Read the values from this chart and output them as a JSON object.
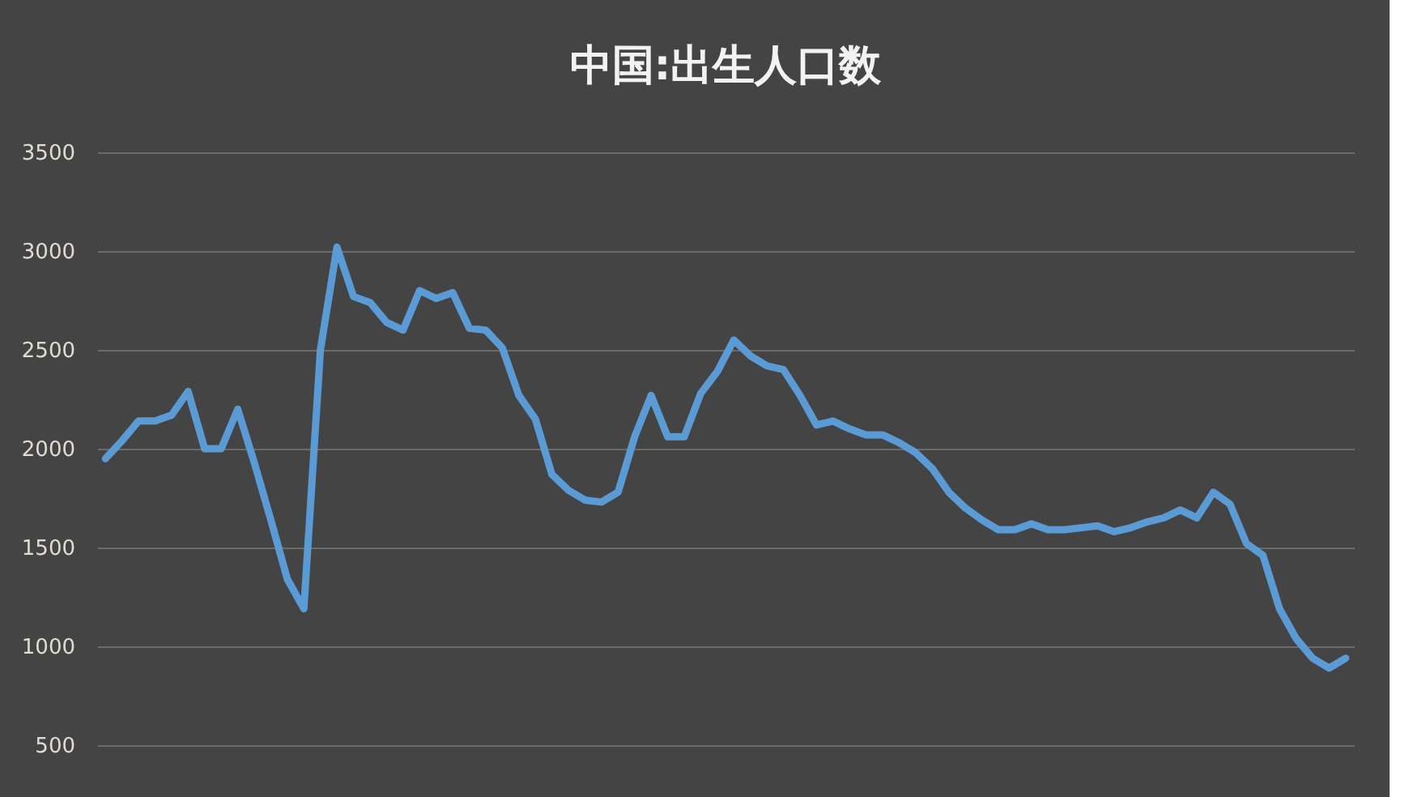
{
  "chart_data": {
    "type": "line",
    "title": "中国:出生人口数",
    "categories": [
      null,
      null,
      null,
      null,
      null,
      null,
      null,
      null,
      null,
      null,
      null,
      null,
      null,
      null,
      null,
      null,
      null,
      null,
      null,
      null,
      null,
      null,
      null,
      null,
      null,
      null,
      null,
      null,
      null,
      null,
      null,
      null,
      null,
      null,
      null,
      null,
      null,
      null,
      null,
      null,
      null,
      null,
      null,
      null,
      null,
      null,
      null,
      null,
      null,
      null,
      null,
      null,
      null,
      null,
      null,
      null,
      null,
      null,
      null,
      null,
      null,
      null,
      null,
      null,
      null,
      null,
      null,
      null,
      null,
      null,
      null,
      null,
      null,
      null,
      null,
      null
    ],
    "series": [
      {
        "color": "#5b9bd5",
        "values": [
          1950,
          2040,
          2140,
          2140,
          2170,
          2290,
          2000,
          2000,
          2200,
          1930,
          1640,
          1340,
          1190,
          2500,
          3020,
          2770,
          2740,
          2640,
          2600,
          2800,
          2760,
          2790,
          2610,
          2600,
          2510,
          2270,
          2150,
          1870,
          1790,
          1740,
          1730,
          1780,
          2060,
          2270,
          2060,
          2060,
          2280,
          2390,
          2550,
          2470,
          2420,
          2400,
          2270,
          2120,
          2140,
          2100,
          2070,
          2070,
          2030,
          1980,
          1900,
          1780,
          1700,
          1640,
          1590,
          1590,
          1620,
          1590,
          1590,
          1600,
          1610,
          1580,
          1600,
          1630,
          1650,
          1690,
          1650,
          1780,
          1720,
          1520,
          1460,
          1190,
          1040,
          940,
          890,
          940
        ]
      }
    ],
    "ylim": [
      500,
      3500
    ],
    "yticks": [
      500,
      1000,
      1500,
      2000,
      2500,
      3000,
      3500
    ],
    "grid": "y",
    "line_style": "solid",
    "marker": "none"
  }
}
